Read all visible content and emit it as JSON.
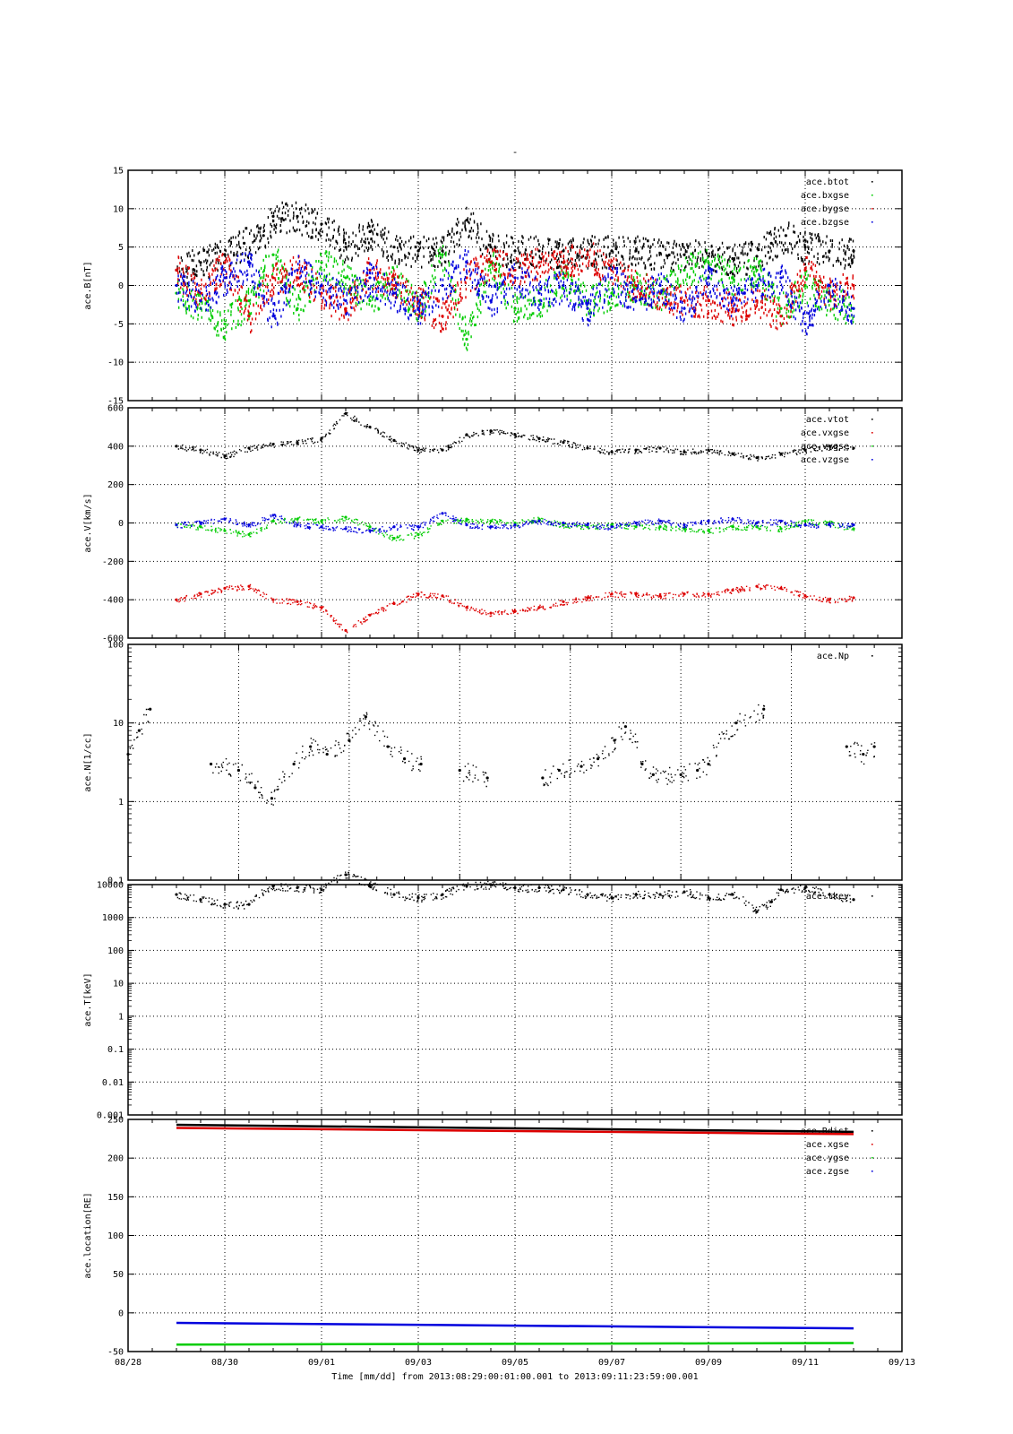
{
  "figure": {
    "title": "-",
    "xlabel": "Time [mm/dd]  from 2013:08:29:00:01:00.001  to  2013:09:11:23:59:00.001"
  },
  "chart_data": [
    {
      "type": "scatter",
      "panel": "B",
      "ylabel": "ace.B[nT]",
      "ylim": [
        -15,
        15
      ],
      "yscale": "linear",
      "yticks": [
        -15,
        -10,
        -5,
        0,
        5,
        10,
        15
      ],
      "ytick_labels": [
        "-15",
        "-10",
        "-5",
        "0",
        "5",
        "10",
        "15"
      ],
      "x_range_days": [
        1,
        15
      ],
      "xticks": [
        0,
        2,
        4,
        6,
        8,
        10,
        12,
        14,
        16
      ],
      "series": [
        {
          "name": "ace.btot",
          "color": "#000000",
          "x": [
            1,
            1.5,
            2,
            2.4,
            2.8,
            3,
            3.5,
            4,
            4.5,
            5,
            5.5,
            6,
            6.5,
            7,
            7.5,
            8,
            8.5,
            9,
            9.5,
            10,
            10.5,
            11,
            11.5,
            12,
            12.5,
            13,
            13.3,
            13.6,
            14,
            14.5,
            15
          ],
          "y": [
            2,
            3,
            4,
            5.5,
            6.5,
            9,
            9,
            8,
            5,
            7,
            5,
            4.5,
            4.5,
            8.5,
            5,
            4.5,
            4.5,
            4.5,
            4.5,
            4.5,
            4.5,
            4.2,
            4,
            3.8,
            3.5,
            3.8,
            5.5,
            6.5,
            5,
            4.5,
            4.5
          ]
        },
        {
          "name": "ace.bxgse",
          "color": "#00cc00",
          "x": [
            1,
            1.5,
            2,
            2.5,
            3,
            3.5,
            4,
            4.5,
            5,
            5.5,
            6,
            6.5,
            7,
            7.5,
            8,
            8.5,
            9,
            9.5,
            10,
            10.5,
            11,
            11.5,
            12,
            12.5,
            13,
            13.5,
            14,
            14.5,
            15
          ],
          "y": [
            -1,
            -3,
            -5,
            -2,
            4,
            -3,
            3,
            1,
            -2,
            1,
            -3,
            4,
            -7,
            3,
            -3,
            -2,
            1,
            -2,
            -1,
            0,
            -1,
            2,
            3,
            1,
            2,
            -3,
            0,
            -2,
            -3
          ]
        },
        {
          "name": "ace.bygse",
          "color": "#dd0000",
          "x": [
            1,
            1.5,
            2,
            2.5,
            3,
            3.5,
            4,
            4.5,
            5,
            5.5,
            6,
            6.5,
            7,
            7.5,
            8,
            8.5,
            9,
            9.5,
            10,
            10.5,
            11,
            11.5,
            12,
            12.5,
            13,
            13.5,
            14,
            14.5,
            15
          ],
          "y": [
            2,
            -1,
            3,
            -4,
            1,
            2,
            -1,
            -3,
            2,
            0,
            -2,
            -4,
            1,
            3,
            2,
            3,
            3,
            4,
            2,
            0,
            -1,
            -2,
            -2,
            -3,
            -2,
            -4,
            2,
            -1,
            0
          ]
        },
        {
          "name": "ace.bzgse",
          "color": "#0000dd",
          "x": [
            1,
            1.5,
            2,
            2.5,
            3,
            3.5,
            4,
            4.5,
            5,
            5.5,
            6,
            6.5,
            7,
            7.5,
            8,
            8.5,
            9,
            9.5,
            10,
            10.5,
            11,
            11.5,
            12,
            12.5,
            13,
            13.5,
            14,
            14.5,
            15
          ],
          "y": [
            0,
            -2,
            1,
            3,
            -4,
            2,
            0,
            -2,
            1,
            -1,
            -3,
            0,
            3,
            -2,
            1,
            -1,
            0,
            -3,
            1,
            -2,
            0,
            -3,
            1,
            -2,
            0,
            1,
            -5,
            0,
            -3
          ]
        }
      ]
    },
    {
      "type": "scatter",
      "panel": "V",
      "ylabel": "ace.V[km/s]",
      "ylim": [
        -600,
        600
      ],
      "yscale": "linear",
      "yticks": [
        -600,
        -400,
        -200,
        0,
        200,
        400,
        600
      ],
      "ytick_labels": [
        "-600",
        "-400",
        "-200",
        "0",
        "200",
        "400",
        "600"
      ],
      "x_range_days": [
        1,
        15
      ],
      "xticks": [
        0,
        2,
        4,
        6,
        8,
        10,
        12,
        14,
        16
      ],
      "series": [
        {
          "name": "ace.vtot",
          "color": "#000000",
          "x": [
            1,
            1.5,
            2,
            2.5,
            3,
            3.5,
            4,
            4.5,
            5,
            5.5,
            6,
            6.5,
            7,
            7.5,
            8,
            8.5,
            9,
            9.5,
            10,
            10.5,
            11,
            11.5,
            12,
            12.5,
            13,
            13.5,
            14,
            14.5,
            15
          ],
          "y": [
            400,
            380,
            350,
            390,
            410,
            420,
            440,
            570,
            500,
            430,
            380,
            380,
            460,
            480,
            460,
            440,
            420,
            390,
            370,
            380,
            390,
            370,
            380,
            360,
            340,
            360,
            380,
            400,
            390
          ]
        },
        {
          "name": "ace.vxgse",
          "color": "#dd0000",
          "x": [
            1,
            1.5,
            2,
            2.5,
            3,
            3.5,
            4,
            4.5,
            5,
            5.5,
            6,
            6.5,
            7,
            7.5,
            8,
            8.5,
            9,
            9.5,
            10,
            10.5,
            11,
            11.5,
            12,
            12.5,
            13,
            13.5,
            14,
            14.5,
            15
          ],
          "y": [
            -400,
            -370,
            -340,
            -330,
            -400,
            -410,
            -440,
            -560,
            -480,
            -420,
            -370,
            -380,
            -440,
            -470,
            -460,
            -440,
            -410,
            -390,
            -370,
            -370,
            -380,
            -370,
            -370,
            -350,
            -330,
            -340,
            -380,
            -400,
            -390
          ]
        },
        {
          "name": "ace.vygse",
          "color": "#00cc00",
          "x": [
            1,
            1.5,
            2,
            2.5,
            3,
            3.5,
            4,
            4.5,
            5,
            5.5,
            6,
            6.5,
            7,
            7.5,
            8,
            8.5,
            9,
            9.5,
            10,
            10.5,
            11,
            11.5,
            12,
            12.5,
            13,
            13.5,
            14,
            14.5,
            15
          ],
          "y": [
            -10,
            -20,
            -40,
            -60,
            10,
            20,
            10,
            30,
            -20,
            -80,
            -60,
            10,
            20,
            10,
            0,
            20,
            -10,
            -20,
            -10,
            -20,
            -20,
            -30,
            -40,
            -20,
            -20,
            -30,
            10,
            0,
            -30
          ]
        },
        {
          "name": "ace.vzgse",
          "color": "#0000dd",
          "x": [
            1,
            1.5,
            2,
            2.5,
            3,
            3.5,
            4,
            4.5,
            5,
            5.5,
            6,
            6.5,
            7,
            7.5,
            8,
            8.5,
            9,
            9.5,
            10,
            10.5,
            11,
            11.5,
            12,
            12.5,
            13,
            13.5,
            14,
            14.5,
            15
          ],
          "y": [
            -10,
            0,
            20,
            -10,
            40,
            -10,
            -20,
            -30,
            -40,
            -20,
            -20,
            50,
            -10,
            -20,
            -10,
            10,
            0,
            -10,
            -20,
            0,
            10,
            -10,
            10,
            20,
            0,
            10,
            -10,
            -10,
            -10
          ]
        }
      ]
    },
    {
      "type": "scatter",
      "panel": "N",
      "ylabel": "ace.N[1/cc]",
      "ylim": [
        0.1,
        100
      ],
      "yscale": "log",
      "yticks": [
        0.1,
        1,
        10,
        100
      ],
      "ytick_labels": [
        "0.1",
        "1",
        "10",
        "100"
      ],
      "x_range_days": [
        0,
        14
      ],
      "xticks": [
        0,
        2,
        4,
        6,
        8,
        10,
        12,
        14
      ],
      "series": [
        {
          "name": "ace.Np",
          "color": "#000000",
          "x": [
            0,
            0.2,
            0.4,
            1.5,
            2.0,
            2.3,
            2.6,
            3.0,
            3.3,
            3.6,
            4.0,
            4.3,
            4.7,
            5.0,
            5.3,
            6.0,
            6.5,
            7.5,
            7.8,
            8.2,
            8.5,
            8.8,
            9.0,
            9.3,
            9.5,
            10.0,
            10.3,
            10.5,
            11.0,
            11.5,
            12.0,
            12.3,
            12.5,
            13.0,
            13.3,
            13.5
          ],
          "y": [
            4,
            8,
            15,
            3,
            2.5,
            1.5,
            1.1,
            3,
            5,
            4,
            6,
            12,
            5,
            3.5,
            3,
            2.5,
            2,
            2,
            2.5,
            2.8,
            3.5,
            6,
            9,
            3,
            2.2,
            2.2,
            2.5,
            3,
            10,
            15,
            0,
            0,
            0,
            5,
            4,
            5
          ]
        }
      ]
    },
    {
      "type": "scatter",
      "panel": "T",
      "ylabel": "ace.T[keV]",
      "ylim": [
        0.001,
        10000
      ],
      "yscale": "log",
      "yticks": [
        0.001,
        0.01,
        0.1,
        1,
        10,
        100,
        1000,
        10000
      ],
      "ytick_labels": [
        "0.001",
        "0.01",
        "0.1",
        "1",
        "10",
        "100",
        "1000",
        "10000"
      ],
      "x_range_days": [
        1,
        15
      ],
      "xticks": [
        0,
        2,
        4,
        6,
        8,
        10,
        12,
        14,
        16
      ],
      "series": [
        {
          "name": "ace.tkev",
          "color": "#000000",
          "x": [
            1,
            1.5,
            2,
            2.5,
            3,
            3.5,
            4,
            4.5,
            5,
            5.5,
            6,
            6.5,
            7,
            7.5,
            8,
            8.5,
            9,
            9.5,
            10,
            10.5,
            11,
            11.5,
            12,
            12.5,
            13,
            13.3,
            13.5,
            14,
            14.5,
            15
          ],
          "y": [
            5000,
            3500,
            2500,
            2500,
            9000,
            8000,
            7000,
            20000,
            10000,
            5000,
            4000,
            5000,
            9000,
            10000,
            8000,
            8000,
            7000,
            5000,
            4000,
            5000,
            5000,
            6000,
            4000,
            5000,
            1500,
            3000,
            7000,
            8000,
            5000,
            3500
          ]
        }
      ]
    },
    {
      "type": "line",
      "panel": "location",
      "ylabel": "ace.location[RE]",
      "ylim": [
        -50,
        250
      ],
      "yscale": "linear",
      "yticks": [
        -50,
        0,
        50,
        100,
        150,
        200,
        250
      ],
      "ytick_labels": [
        "-50",
        "0",
        "50",
        "100",
        "150",
        "200",
        "250"
      ],
      "x_range_days": [
        1,
        15
      ],
      "xticks": [
        0,
        2,
        4,
        6,
        8,
        10,
        12,
        14,
        16
      ],
      "xtick_labels": [
        "08/28",
        "08/30",
        "09/01",
        "09/03",
        "09/05",
        "09/07",
        "09/09",
        "09/11",
        "09/13"
      ],
      "series": [
        {
          "name": "ace.Rdist",
          "color": "#000000",
          "x": [
            1,
            15
          ],
          "y": [
            243,
            234
          ]
        },
        {
          "name": "ace.xgse",
          "color": "#dd0000",
          "x": [
            1,
            15
          ],
          "y": [
            239,
            231
          ]
        },
        {
          "name": "ace.ygse",
          "color": "#00cc00",
          "x": [
            1,
            15
          ],
          "y": [
            -41,
            -39
          ]
        },
        {
          "name": "ace.zgse",
          "color": "#0000dd",
          "x": [
            1,
            15
          ],
          "y": [
            -13,
            -20
          ]
        }
      ]
    }
  ]
}
